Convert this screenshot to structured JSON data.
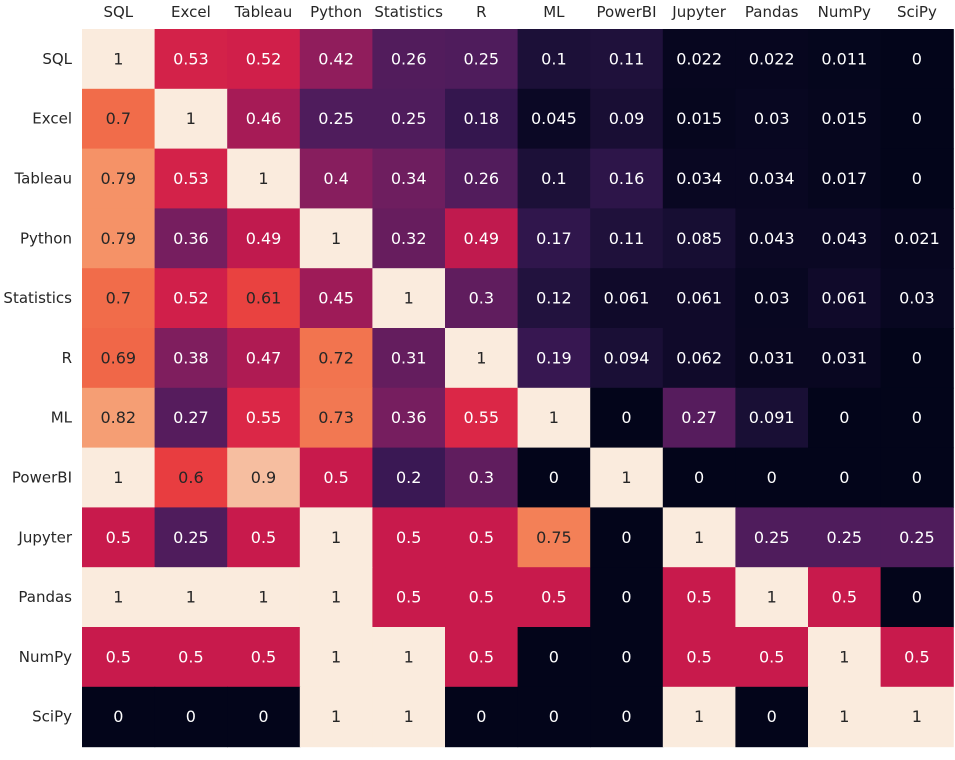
{
  "chart_data": {
    "type": "heatmap",
    "title": "",
    "xlabel": "",
    "ylabel": "",
    "x_labels": [
      "SQL",
      "Excel",
      "Tableau",
      "Python",
      "Statistics",
      "R",
      "ML",
      "PowerBI",
      "Jupyter",
      "Pandas",
      "NumPy",
      "SciPy"
    ],
    "y_labels": [
      "SQL",
      "Excel",
      "Tableau",
      "Python",
      "Statistics",
      "R",
      "ML",
      "PowerBI",
      "Jupyter",
      "Pandas",
      "NumPy",
      "SciPy"
    ],
    "x_axis_position": "top",
    "colormap": "rocket",
    "value_range": [
      0,
      1
    ],
    "annotations": true,
    "values": [
      [
        "1",
        "0.53",
        "0.52",
        "0.42",
        "0.26",
        "0.25",
        "0.1",
        "0.11",
        "0.022",
        "0.022",
        "0.011",
        "0"
      ],
      [
        "0.7",
        "1",
        "0.46",
        "0.25",
        "0.25",
        "0.18",
        "0.045",
        "0.09",
        "0.015",
        "0.03",
        "0.015",
        "0"
      ],
      [
        "0.79",
        "0.53",
        "1",
        "0.4",
        "0.34",
        "0.26",
        "0.1",
        "0.16",
        "0.034",
        "0.034",
        "0.017",
        "0"
      ],
      [
        "0.79",
        "0.36",
        "0.49",
        "1",
        "0.32",
        "0.49",
        "0.17",
        "0.11",
        "0.085",
        "0.043",
        "0.043",
        "0.021"
      ],
      [
        "0.7",
        "0.52",
        "0.61",
        "0.45",
        "1",
        "0.3",
        "0.12",
        "0.061",
        "0.061",
        "0.03",
        "0.061",
        "0.03"
      ],
      [
        "0.69",
        "0.38",
        "0.47",
        "0.72",
        "0.31",
        "1",
        "0.19",
        "0.094",
        "0.062",
        "0.031",
        "0.031",
        "0"
      ],
      [
        "0.82",
        "0.27",
        "0.55",
        "0.73",
        "0.36",
        "0.55",
        "1",
        "0",
        "0.27",
        "0.091",
        "0",
        "0"
      ],
      [
        "1",
        "0.6",
        "0.9",
        "0.5",
        "0.2",
        "0.3",
        "0",
        "1",
        "0",
        "0",
        "0",
        "0"
      ],
      [
        "0.5",
        "0.25",
        "0.5",
        "1",
        "0.5",
        "0.5",
        "0.75",
        "0",
        "1",
        "0.25",
        "0.25",
        "0.25"
      ],
      [
        "1",
        "1",
        "1",
        "1",
        "0.5",
        "0.5",
        "0.5",
        "0",
        "0.5",
        "1",
        "0.5",
        "0"
      ],
      [
        "0.5",
        "0.5",
        "0.5",
        "1",
        "1",
        "0.5",
        "0",
        "0",
        "0.5",
        "0.5",
        "1",
        "0.5"
      ],
      [
        "0",
        "0",
        "0",
        "1",
        "1",
        "0",
        "0",
        "0",
        "1",
        "0",
        "1",
        "1"
      ]
    ]
  }
}
